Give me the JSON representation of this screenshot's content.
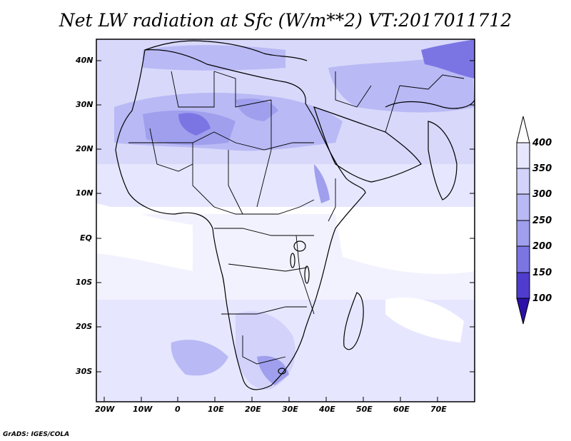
{
  "title": "Net LW radiation at Sfc (W/m**2) VT:2017011712",
  "credit": "GrADS: IGES/COLA",
  "lat_labels": [
    "40N",
    "30N",
    "20N",
    "10N",
    "EQ",
    "10S",
    "20S",
    "30S"
  ],
  "lon_labels": [
    "20W",
    "10W",
    "0",
    "10E",
    "20E",
    "30E",
    "40E",
    "50E",
    "60E",
    "70E"
  ],
  "colorbar": {
    "labels": [
      "400",
      "350",
      "300",
      "250",
      "200",
      "150",
      "100"
    ],
    "colors": [
      "#e6e6ff",
      "#d2d2fa",
      "#b9b9f5",
      "#9f9fee",
      "#7b75e4",
      "#4f3ccd",
      "#2d10a8"
    ],
    "arrow_top_color": "#ffffff",
    "arrow_bottom_color": "#2d10a8"
  },
  "map_colors": {
    "ocean_light": "#ffffff",
    "low": "#e6e6ff",
    "mid": "#d2d2fa",
    "high": "#b9b9f5",
    "higher": "#9f9fee",
    "highest": "#7b75e4",
    "border": "#000000"
  }
}
